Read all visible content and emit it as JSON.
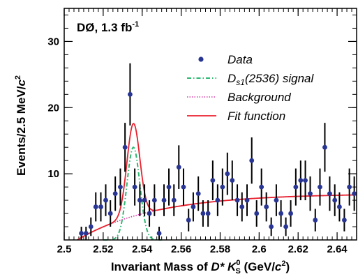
{
  "chart_data": {
    "type": "scatter",
    "experiment_label": "DØ, 1.3 fb",
    "experiment_label_sup": "-1",
    "xlabel": {
      "prefix": "Invariant Mass of ",
      "particle_d": "D* ",
      "particle_k": "K",
      "k_sub": "S",
      "k_sup": "0",
      "units_open": " (GeV/",
      "units_c": "c",
      "units_sup": "2",
      "units_close": ")"
    },
    "ylabel": {
      "prefix": "Events/2.5 MeV/",
      "c": "c",
      "sup": "2"
    },
    "xlim": [
      2.5,
      2.65
    ],
    "ylim": [
      0,
      35
    ],
    "x_ticks": [
      2.5,
      2.52,
      2.54,
      2.56,
      2.58,
      2.6,
      2.62,
      2.64
    ],
    "x_tick_labels": [
      "2.5",
      "2.52",
      "2.54",
      "2.56",
      "2.58",
      "2.6",
      "2.62",
      "2.64"
    ],
    "y_ticks": [
      10,
      20,
      30
    ],
    "y_tick_labels": [
      "10",
      "20",
      "30"
    ],
    "x_minor_step": 0.0025,
    "y_minor_step": 2,
    "legend": {
      "placement": "top-right",
      "entries": [
        {
          "key": "data",
          "label": "Data"
        },
        {
          "key": "signal",
          "label_main": "D",
          "label_sub": "s1",
          "label_rest": "(2536) signal"
        },
        {
          "key": "background",
          "label": "Background"
        },
        {
          "key": "fit",
          "label": "Fit function"
        }
      ]
    },
    "colors": {
      "data": "#283593",
      "signal": "#2eb872",
      "background": "#d63ba8",
      "fit": "#e8212e",
      "error_bar": "#000000"
    },
    "series": [
      {
        "name": "Data",
        "type": "points_with_errors",
        "x": [
          2.5088,
          2.5112,
          2.5137,
          2.5162,
          2.5188,
          2.5213,
          2.5237,
          2.5262,
          2.5288,
          2.5312,
          2.5338,
          2.5362,
          2.5388,
          2.5412,
          2.5437,
          2.5463,
          2.5487,
          2.5512,
          2.5537,
          2.5563,
          2.5588,
          2.5612,
          2.5638,
          2.5662,
          2.5688,
          2.5712,
          2.5738,
          2.5762,
          2.5787,
          2.5812,
          2.5837,
          2.5862,
          2.5888,
          2.5912,
          2.5938,
          2.5962,
          2.5987,
          2.6012,
          2.6037,
          2.6062,
          2.6088,
          2.6112,
          2.6137,
          2.6162,
          2.6188,
          2.6213,
          2.6237,
          2.6262,
          2.6288,
          2.6312,
          2.6337,
          2.6362,
          2.6388,
          2.6412,
          2.6437,
          2.6463,
          2.6488
        ],
        "y": [
          1,
          1,
          2,
          5,
          5,
          6,
          4,
          7,
          8,
          14,
          22,
          8,
          6,
          6,
          4,
          6,
          1,
          6,
          8,
          6,
          11,
          8,
          3,
          5,
          7,
          4,
          4,
          9,
          6,
          8,
          10,
          9,
          6,
          5,
          6,
          12,
          4,
          8,
          5,
          2,
          6,
          4,
          2,
          4,
          8,
          9,
          9,
          7,
          3,
          8,
          14,
          7,
          6,
          5,
          3,
          8,
          7
        ],
        "err": [
          1.0,
          1.0,
          1.4,
          2.2,
          2.2,
          2.4,
          2.0,
          2.6,
          2.8,
          3.7,
          4.7,
          2.8,
          2.4,
          2.4,
          2.0,
          2.4,
          1.0,
          2.4,
          2.8,
          2.4,
          3.3,
          2.8,
          1.7,
          2.2,
          2.6,
          2.0,
          2.0,
          3.0,
          2.4,
          2.8,
          3.2,
          3.0,
          2.4,
          2.2,
          2.4,
          3.5,
          2.0,
          2.8,
          2.2,
          1.4,
          2.4,
          2.0,
          1.4,
          2.0,
          2.8,
          3.0,
          3.0,
          2.6,
          1.7,
          2.8,
          3.7,
          2.6,
          2.4,
          2.2,
          1.7,
          2.8,
          2.6
        ]
      },
      {
        "name": "Ds1(2536) signal",
        "type": "gaussian",
        "style": "dash-dot",
        "amplitude": 14.0,
        "mean": 2.5355,
        "sigma": 0.0033,
        "x_range": [
          2.52,
          2.55
        ]
      },
      {
        "name": "Background",
        "type": "threshold",
        "style": "dotted",
        "threshold": 2.5067,
        "scale": 7.0,
        "shape": 25,
        "x_range": [
          2.5067,
          2.65
        ]
      },
      {
        "name": "Fit function",
        "type": "sum",
        "style": "solid",
        "components": [
          "Ds1(2536) signal",
          "Background"
        ],
        "x_range": [
          2.5067,
          2.65
        ]
      }
    ]
  }
}
